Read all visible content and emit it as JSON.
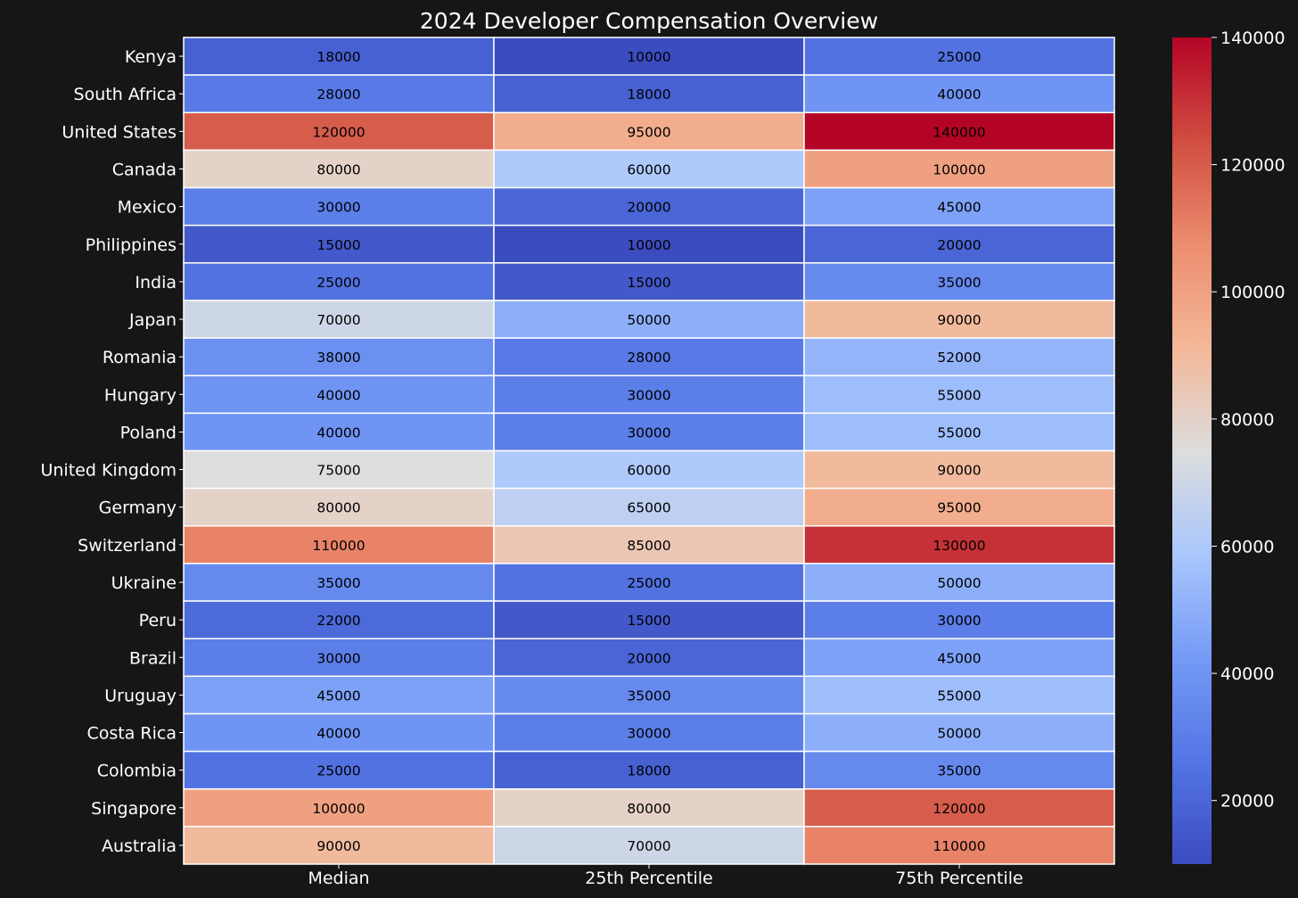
{
  "chart_data": {
    "type": "heatmap",
    "title": "2024 Developer Compensation Overview",
    "columns": [
      "Median",
      "25th Percentile",
      "75th Percentile"
    ],
    "rows": [
      {
        "label": "Kenya",
        "values": [
          18000,
          10000,
          25000
        ]
      },
      {
        "label": "South Africa",
        "values": [
          28000,
          18000,
          40000
        ]
      },
      {
        "label": "United States",
        "values": [
          120000,
          95000,
          140000
        ]
      },
      {
        "label": "Canada",
        "values": [
          80000,
          60000,
          100000
        ]
      },
      {
        "label": "Mexico",
        "values": [
          30000,
          20000,
          45000
        ]
      },
      {
        "label": "Philippines",
        "values": [
          15000,
          10000,
          20000
        ]
      },
      {
        "label": "India",
        "values": [
          25000,
          15000,
          35000
        ]
      },
      {
        "label": "Japan",
        "values": [
          70000,
          50000,
          90000
        ]
      },
      {
        "label": "Romania",
        "values": [
          38000,
          28000,
          52000
        ]
      },
      {
        "label": "Hungary",
        "values": [
          40000,
          30000,
          55000
        ]
      },
      {
        "label": "Poland",
        "values": [
          40000,
          30000,
          55000
        ]
      },
      {
        "label": "United Kingdom",
        "values": [
          75000,
          60000,
          90000
        ]
      },
      {
        "label": "Germany",
        "values": [
          80000,
          65000,
          95000
        ]
      },
      {
        "label": "Switzerland",
        "values": [
          110000,
          85000,
          130000
        ]
      },
      {
        "label": "Ukraine",
        "values": [
          35000,
          25000,
          50000
        ]
      },
      {
        "label": "Peru",
        "values": [
          22000,
          15000,
          30000
        ]
      },
      {
        "label": "Brazil",
        "values": [
          30000,
          20000,
          45000
        ]
      },
      {
        "label": "Uruguay",
        "values": [
          45000,
          35000,
          55000
        ]
      },
      {
        "label": "Costa Rica",
        "values": [
          40000,
          30000,
          50000
        ]
      },
      {
        "label": "Colombia",
        "values": [
          25000,
          18000,
          35000
        ]
      },
      {
        "label": "Singapore",
        "values": [
          100000,
          80000,
          120000
        ]
      },
      {
        "label": "Australia",
        "values": [
          90000,
          70000,
          110000
        ]
      }
    ],
    "colormap": "coolwarm",
    "value_range": [
      10000,
      140000
    ],
    "colorbar_ticks": [
      20000,
      40000,
      60000,
      80000,
      100000,
      120000,
      140000
    ],
    "colors": {
      "background": "#161616",
      "text": "#ffffff",
      "cell_text": "#000000",
      "cell_border": "#ffffff"
    }
  }
}
